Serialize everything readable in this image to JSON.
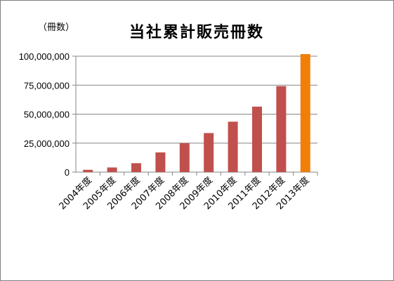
{
  "chart_data": {
    "type": "bar",
    "title": "当社累計販売冊数",
    "unit_label": "（冊数）",
    "categories": [
      "2004年度",
      "2005年度",
      "2006年度",
      "2007年度",
      "2008年度",
      "2009年度",
      "2010年度",
      "2011年度",
      "2012年度",
      "2013年度"
    ],
    "values": [
      2000000,
      4000000,
      7700000,
      17000000,
      25000000,
      33700000,
      43500000,
      56500000,
      74200000,
      101800000
    ],
    "ylim": [
      0,
      100000000
    ],
    "yticks": [
      "0",
      "25,000,000",
      "50,000,000",
      "75,000,000",
      "100,000,000"
    ],
    "ytick_values": [
      0,
      25000000,
      50000000,
      75000000,
      100000000
    ],
    "grid": true,
    "legend": "none",
    "colors": {
      "bar": "#c0504d",
      "highlight": "#f07f09",
      "grid": "#868686",
      "axis": "#868686"
    },
    "highlight_index": 9
  }
}
